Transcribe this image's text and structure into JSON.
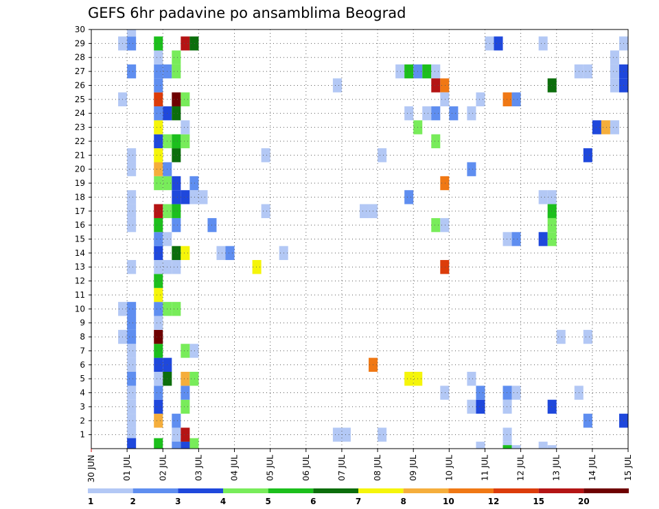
{
  "chart_data": {
    "type": "heatmap",
    "title": "GEFS 6hr padavine po ansamblima Beograd",
    "xlabel": "",
    "ylabel": "",
    "x_tick_labels": [
      "30 JUN",
      "01 JUL",
      "02 JUL",
      "03 JUL",
      "04 JUL",
      "05 JUL",
      "06 JUL",
      "07 JUL",
      "08 JUL",
      "09 JUL",
      "10 JUL",
      "11 JUL",
      "12 JUL",
      "13 JUL",
      "14 JUL",
      "15 JUL"
    ],
    "x_range_days": [
      0,
      15
    ],
    "y_tick_labels": [
      "1",
      "2",
      "3",
      "4",
      "5",
      "6",
      "7",
      "8",
      "9",
      "10",
      "11",
      "12",
      "13",
      "14",
      "15",
      "16",
      "17",
      "18",
      "19",
      "20",
      "21",
      "22",
      "23",
      "24",
      "25",
      "26",
      "27",
      "28",
      "29",
      "30"
    ],
    "y_range_members": [
      0,
      30
    ],
    "grid": true,
    "colorbar": {
      "placement": "bottom",
      "bins": [
        {
          "label": "1",
          "color": "#b3c8f5"
        },
        {
          "label": "2",
          "color": "#5f8ef0"
        },
        {
          "label": "3",
          "color": "#1f48dc"
        },
        {
          "label": "4",
          "color": "#78ec5a"
        },
        {
          "label": "5",
          "color": "#1cbf1c"
        },
        {
          "label": "6",
          "color": "#0c6e0c"
        },
        {
          "label": "7",
          "color": "#f5f50a"
        },
        {
          "label": "8",
          "color": "#f5ae3c"
        },
        {
          "label": "10",
          "color": "#f07814"
        },
        {
          "label": "12",
          "color": "#dc3c0a"
        },
        {
          "label": "15",
          "color": "#b41414"
        },
        {
          "label": "20",
          "color": "#6e0000"
        }
      ]
    },
    "cell_encoding": "x = day since 30 JUN 00Z (6-hour steps), y = ensemble member, c = colorbar bin index (0 = 1 mm)",
    "cells": [
      {
        "x": 1.0,
        "y": 1,
        "c": 0
      },
      {
        "x": 1.0,
        "y": 2,
        "c": 0
      },
      {
        "x": 1.0,
        "y": 3,
        "c": 0
      },
      {
        "x": 1.0,
        "y": 4,
        "c": 0
      },
      {
        "x": 1.0,
        "y": 5,
        "c": 1
      },
      {
        "x": 1.0,
        "y": 6,
        "c": 0
      },
      {
        "x": 1.0,
        "y": 7,
        "c": 0
      },
      {
        "x": 0.75,
        "y": 8,
        "c": 0
      },
      {
        "x": 1.0,
        "y": 8,
        "c": 1
      },
      {
        "x": 1.0,
        "y": 9,
        "c": 1
      },
      {
        "x": 0.75,
        "y": 10,
        "c": 0
      },
      {
        "x": 1.0,
        "y": 10,
        "c": 1
      },
      {
        "x": 1.0,
        "y": 13,
        "c": 0
      },
      {
        "x": 1.0,
        "y": 16,
        "c": 0
      },
      {
        "x": 1.0,
        "y": 17,
        "c": 0
      },
      {
        "x": 1.0,
        "y": 18,
        "c": 0
      },
      {
        "x": 1.0,
        "y": 20,
        "c": 0
      },
      {
        "x": 1.0,
        "y": 21,
        "c": 0
      },
      {
        "x": 0.75,
        "y": 25,
        "c": 0
      },
      {
        "x": 1.0,
        "y": 27,
        "c": 1
      },
      {
        "x": 0.75,
        "y": 29,
        "c": 0
      },
      {
        "x": 1.0,
        "y": 29,
        "c": 1
      },
      {
        "x": 1.0,
        "y": 30,
        "c": 0
      },
      {
        "x": 1.0,
        "y": 0.25,
        "c": 2
      },
      {
        "x": 1.75,
        "y": 0.25,
        "c": 4
      },
      {
        "x": 1.75,
        "y": 2,
        "c": 7
      },
      {
        "x": 1.75,
        "y": 3,
        "c": 2
      },
      {
        "x": 1.75,
        "y": 4,
        "c": 1
      },
      {
        "x": 1.75,
        "y": 5,
        "c": 0
      },
      {
        "x": 2.0,
        "y": 5,
        "c": 5
      },
      {
        "x": 1.75,
        "y": 6,
        "c": 2
      },
      {
        "x": 2.0,
        "y": 6,
        "c": 2
      },
      {
        "x": 1.75,
        "y": 7,
        "c": 4
      },
      {
        "x": 1.75,
        "y": 8,
        "c": 11
      },
      {
        "x": 1.75,
        "y": 9,
        "c": 0
      },
      {
        "x": 1.75,
        "y": 10,
        "c": 1
      },
      {
        "x": 2.0,
        "y": 10,
        "c": 3
      },
      {
        "x": 2.25,
        "y": 10,
        "c": 3
      },
      {
        "x": 1.75,
        "y": 11,
        "c": 6
      },
      {
        "x": 1.75,
        "y": 12,
        "c": 4
      },
      {
        "x": 1.75,
        "y": 13,
        "c": 0
      },
      {
        "x": 2.0,
        "y": 13,
        "c": 0
      },
      {
        "x": 2.25,
        "y": 13,
        "c": 0
      },
      {
        "x": 1.75,
        "y": 14,
        "c": 2
      },
      {
        "x": 2.25,
        "y": 14,
        "c": 5
      },
      {
        "x": 2.5,
        "y": 14,
        "c": 6
      },
      {
        "x": 1.75,
        "y": 15,
        "c": 1
      },
      {
        "x": 2.0,
        "y": 15,
        "c": 0
      },
      {
        "x": 1.75,
        "y": 16,
        "c": 4
      },
      {
        "x": 2.25,
        "y": 16,
        "c": 1
      },
      {
        "x": 1.75,
        "y": 17,
        "c": 10
      },
      {
        "x": 2.0,
        "y": 17,
        "c": 3
      },
      {
        "x": 2.25,
        "y": 17,
        "c": 4
      },
      {
        "x": 1.75,
        "y": 19,
        "c": 3
      },
      {
        "x": 2.0,
        "y": 19,
        "c": 3
      },
      {
        "x": 2.25,
        "y": 18,
        "c": 2
      },
      {
        "x": 2.5,
        "y": 18,
        "c": 2
      },
      {
        "x": 2.25,
        "y": 19,
        "c": 2
      },
      {
        "x": 1.75,
        "y": 20,
        "c": 7
      },
      {
        "x": 2.0,
        "y": 20,
        "c": 1
      },
      {
        "x": 1.75,
        "y": 21,
        "c": 6
      },
      {
        "x": 2.25,
        "y": 21,
        "c": 5
      },
      {
        "x": 1.75,
        "y": 22,
        "c": 2
      },
      {
        "x": 2.0,
        "y": 22,
        "c": 3
      },
      {
        "x": 2.25,
        "y": 22,
        "c": 4
      },
      {
        "x": 2.5,
        "y": 22,
        "c": 3
      },
      {
        "x": 1.75,
        "y": 23,
        "c": 6
      },
      {
        "x": 2.5,
        "y": 23,
        "c": 0
      },
      {
        "x": 1.75,
        "y": 24,
        "c": 1
      },
      {
        "x": 2.0,
        "y": 24,
        "c": 2
      },
      {
        "x": 2.25,
        "y": 24,
        "c": 5
      },
      {
        "x": 1.75,
        "y": 25,
        "c": 9
      },
      {
        "x": 2.25,
        "y": 25,
        "c": 11
      },
      {
        "x": 2.5,
        "y": 25,
        "c": 3
      },
      {
        "x": 1.75,
        "y": 26,
        "c": 1
      },
      {
        "x": 1.75,
        "y": 27,
        "c": 1
      },
      {
        "x": 2.0,
        "y": 27,
        "c": 1
      },
      {
        "x": 2.25,
        "y": 27,
        "c": 3
      },
      {
        "x": 1.75,
        "y": 28,
        "c": 0
      },
      {
        "x": 2.25,
        "y": 28,
        "c": 3
      },
      {
        "x": 1.75,
        "y": 29,
        "c": 4
      },
      {
        "x": 2.5,
        "y": 29,
        "c": 10
      },
      {
        "x": 2.75,
        "y": 29,
        "c": 5
      },
      {
        "x": 2.25,
        "y": 0.25,
        "c": 1
      },
      {
        "x": 2.5,
        "y": 0.25,
        "c": 3
      },
      {
        "x": 2.75,
        "y": 0.25,
        "c": 3
      },
      {
        "x": 2.5,
        "y": 0,
        "c": 2
      },
      {
        "x": 2.25,
        "y": 1,
        "c": 0
      },
      {
        "x": 2.5,
        "y": 1,
        "c": 10
      },
      {
        "x": 2.25,
        "y": 2,
        "c": 1
      },
      {
        "x": 2.5,
        "y": 3,
        "c": 3
      },
      {
        "x": 2.5,
        "y": 4,
        "c": 1
      },
      {
        "x": 2.5,
        "y": 5,
        "c": 7
      },
      {
        "x": 2.75,
        "y": 5,
        "c": 3
      },
      {
        "x": 2.75,
        "y": 7,
        "c": 0
      },
      {
        "x": 2.5,
        "y": 7,
        "c": 3
      },
      {
        "x": 2.75,
        "y": 18,
        "c": 0
      },
      {
        "x": 3.0,
        "y": 18,
        "c": 0
      },
      {
        "x": 2.75,
        "y": 19,
        "c": 1
      },
      {
        "x": 3.25,
        "y": 16,
        "c": 1
      },
      {
        "x": 3.5,
        "y": 14,
        "c": 0
      },
      {
        "x": 3.75,
        "y": 14,
        "c": 1
      },
      {
        "x": 4.5,
        "y": 13,
        "c": 6
      },
      {
        "x": 4.75,
        "y": 17,
        "c": 0
      },
      {
        "x": 4.75,
        "y": 21,
        "c": 0
      },
      {
        "x": 5.25,
        "y": 14,
        "c": 0
      },
      {
        "x": 6.75,
        "y": 1,
        "c": 0
      },
      {
        "x": 7.0,
        "y": 1,
        "c": 0
      },
      {
        "x": 6.75,
        "y": 26,
        "c": 0
      },
      {
        "x": 7.5,
        "y": 17,
        "c": 0
      },
      {
        "x": 7.75,
        "y": 17,
        "c": 0
      },
      {
        "x": 7.75,
        "y": 6,
        "c": 8
      },
      {
        "x": 8.0,
        "y": 1,
        "c": 0
      },
      {
        "x": 8.0,
        "y": 21,
        "c": 0
      },
      {
        "x": 8.5,
        "y": 27,
        "c": 0
      },
      {
        "x": 8.75,
        "y": 27,
        "c": 4
      },
      {
        "x": 8.75,
        "y": 5,
        "c": 6
      },
      {
        "x": 9.0,
        "y": 5,
        "c": 6
      },
      {
        "x": 8.75,
        "y": 18,
        "c": 1
      },
      {
        "x": 8.75,
        "y": 24,
        "c": 0
      },
      {
        "x": 9.0,
        "y": 23,
        "c": 3
      },
      {
        "x": 9.0,
        "y": 27,
        "c": 1
      },
      {
        "x": 9.25,
        "y": 24,
        "c": 0
      },
      {
        "x": 9.5,
        "y": 24,
        "c": 1
      },
      {
        "x": 9.25,
        "y": 27,
        "c": 4
      },
      {
        "x": 9.5,
        "y": 27,
        "c": 0
      },
      {
        "x": 9.5,
        "y": 22,
        "c": 3
      },
      {
        "x": 9.5,
        "y": 16,
        "c": 3
      },
      {
        "x": 9.5,
        "y": 26,
        "c": 10
      },
      {
        "x": 9.75,
        "y": 26,
        "c": 8
      },
      {
        "x": 9.75,
        "y": 25,
        "c": 0
      },
      {
        "x": 9.75,
        "y": 16,
        "c": 0
      },
      {
        "x": 9.75,
        "y": 19,
        "c": 8
      },
      {
        "x": 9.75,
        "y": 13,
        "c": 9
      },
      {
        "x": 9.75,
        "y": 4,
        "c": 0
      },
      {
        "x": 10.0,
        "y": 24,
        "c": 1
      },
      {
        "x": 10.5,
        "y": 24,
        "c": 0
      },
      {
        "x": 10.5,
        "y": 20,
        "c": 1
      },
      {
        "x": 10.75,
        "y": 25,
        "c": 0
      },
      {
        "x": 10.5,
        "y": 5,
        "c": 0
      },
      {
        "x": 10.5,
        "y": 3,
        "c": 0
      },
      {
        "x": 10.75,
        "y": 3,
        "c": 2
      },
      {
        "x": 10.75,
        "y": 4,
        "c": 1
      },
      {
        "x": 10.75,
        "y": 0,
        "c": 0
      },
      {
        "x": 11.5,
        "y": 25,
        "c": 8
      },
      {
        "x": 11.75,
        "y": 25,
        "c": 1
      },
      {
        "x": 11.5,
        "y": 15,
        "c": 0
      },
      {
        "x": 11.75,
        "y": 15,
        "c": 1
      },
      {
        "x": 11.5,
        "y": 4,
        "c": 1
      },
      {
        "x": 11.75,
        "y": 4,
        "c": 0
      },
      {
        "x": 11.5,
        "y": 3,
        "c": 0
      },
      {
        "x": 11.5,
        "y": 1,
        "c": 0
      },
      {
        "x": 11.5,
        "y": 0,
        "c": 0
      },
      {
        "x": 11.5,
        "y": -0.25,
        "c": 4
      },
      {
        "x": 11.75,
        "y": -0.25,
        "c": 0
      },
      {
        "x": 11.25,
        "y": 29,
        "c": 2
      },
      {
        "x": 11.0,
        "y": 29,
        "c": 0
      },
      {
        "x": 12.5,
        "y": 29,
        "c": 0
      },
      {
        "x": 12.75,
        "y": 26,
        "c": 5
      },
      {
        "x": 12.5,
        "y": 18,
        "c": 0
      },
      {
        "x": 12.75,
        "y": 18,
        "c": 0
      },
      {
        "x": 12.75,
        "y": 17,
        "c": 4
      },
      {
        "x": 12.75,
        "y": 16,
        "c": 3
      },
      {
        "x": 12.5,
        "y": 15,
        "c": 2
      },
      {
        "x": 12.75,
        "y": 15,
        "c": 3
      },
      {
        "x": 12.75,
        "y": 3,
        "c": 2
      },
      {
        "x": 12.5,
        "y": 0,
        "c": 0
      },
      {
        "x": 12.75,
        "y": -0.25,
        "c": 0
      },
      {
        "x": 13.0,
        "y": 8,
        "c": 0
      },
      {
        "x": 13.5,
        "y": 4,
        "c": 0
      },
      {
        "x": 13.5,
        "y": 27,
        "c": 0
      },
      {
        "x": 13.75,
        "y": 27,
        "c": 0
      },
      {
        "x": 13.75,
        "y": 21,
        "c": 2
      },
      {
        "x": 13.75,
        "y": 8,
        "c": 0
      },
      {
        "x": 13.75,
        "y": 2,
        "c": 1
      },
      {
        "x": 14.0,
        "y": 23,
        "c": 2
      },
      {
        "x": 14.25,
        "y": 23,
        "c": 7
      },
      {
        "x": 14.5,
        "y": 23,
        "c": 0
      },
      {
        "x": 14.5,
        "y": 26,
        "c": 0
      },
      {
        "x": 14.75,
        "y": 26,
        "c": 2
      },
      {
        "x": 14.5,
        "y": 27,
        "c": 0
      },
      {
        "x": 14.75,
        "y": 27,
        "c": 2
      },
      {
        "x": 14.5,
        "y": 28,
        "c": 0
      },
      {
        "x": 14.75,
        "y": 2,
        "c": 2
      },
      {
        "x": 14.75,
        "y": 29,
        "c": 0
      }
    ]
  }
}
